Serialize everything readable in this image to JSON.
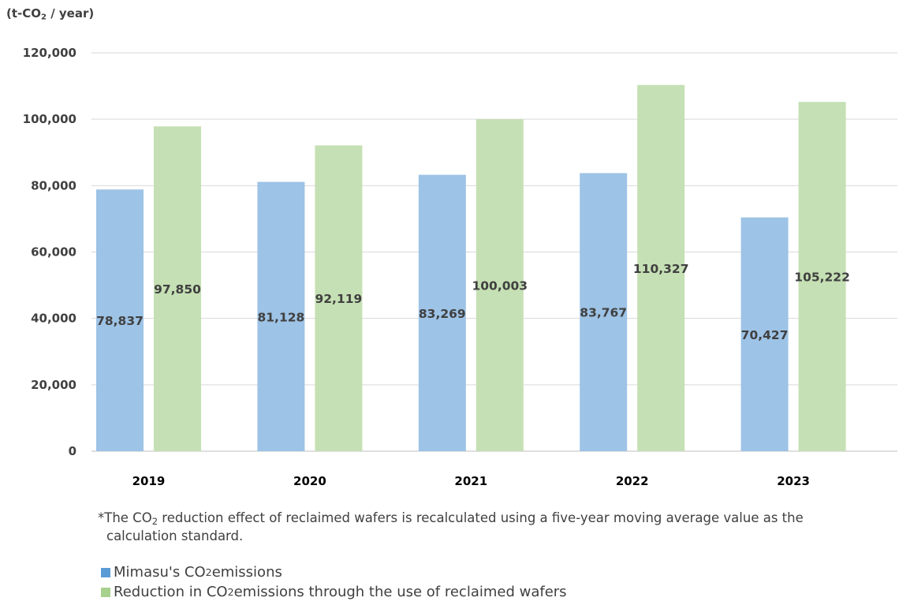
{
  "chart_data": {
    "type": "bar",
    "unit_label_prefix": "(t-CO",
    "unit_label_sub": "2",
    "unit_label_suffix": " / year)",
    "categories": [
      "2019",
      "2020",
      "2021",
      "2022",
      "2023"
    ],
    "series": [
      {
        "name": "Mimasu's CO2 emissions",
        "color": "#9dc3e6",
        "values": [
          78837,
          81128,
          83269,
          83767,
          70427
        ],
        "labels": [
          "78,837",
          "81,128",
          "83,269",
          "83,767",
          "70,427"
        ]
      },
      {
        "name": "Reduction in CO2 emissions through the use of reclaimed wafers",
        "color": "#c5e0b4",
        "values": [
          97850,
          92119,
          100003,
          110327,
          105222
        ],
        "labels": [
          "97,850",
          "92,119",
          "100,003",
          "110,327",
          "105,222"
        ]
      }
    ],
    "ylim": [
      0,
      120000
    ],
    "yticks": [
      0,
      20000,
      40000,
      60000,
      80000,
      100000,
      120000
    ],
    "ytick_labels": [
      "0",
      "20,000",
      "40,000",
      "60,000",
      "80,000",
      "100,000",
      "120,000"
    ],
    "grid": true
  },
  "note": {
    "line1_pre": "*The CO",
    "sub": "2",
    "line1_post": " reduction effect of reclaimed wafers is recalculated using a five-year moving average value as the",
    "line2": "calculation standard."
  },
  "legend": [
    {
      "pre": "Mimasu's CO",
      "sub": "2",
      "post": " emissions",
      "color": "#5b9bd5"
    },
    {
      "pre": "Reduction in CO",
      "sub": "2",
      "post": " emissions through the use of reclaimed wafers",
      "color": "#a9d18e"
    }
  ]
}
